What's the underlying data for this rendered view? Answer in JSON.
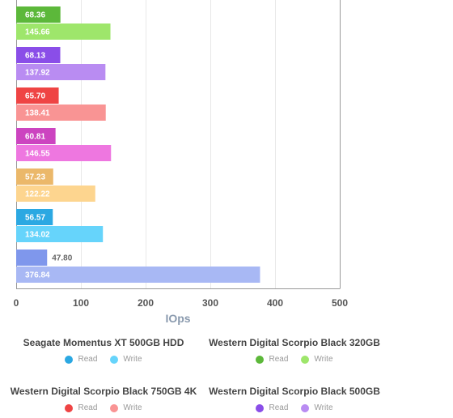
{
  "chart_data": {
    "type": "bar",
    "orientation": "horizontal",
    "xlabel": "IOps",
    "xlim": [
      0,
      500
    ],
    "xticks": [
      0,
      100,
      200,
      300,
      400,
      500
    ],
    "grid": true,
    "groups": [
      {
        "read": 68.36,
        "write": 145.66,
        "read_label": "68.36",
        "write_label": "145.66",
        "read_color": "#5cb83a",
        "write_color": "#9ee66b"
      },
      {
        "read": 68.13,
        "write": 137.92,
        "read_label": "68.13",
        "write_label": "137.92",
        "read_color": "#8a4ee8",
        "write_color": "#b98cf2"
      },
      {
        "read": 65.7,
        "write": 138.41,
        "read_label": "65.70",
        "write_label": "138.41",
        "read_color": "#ef4444",
        "write_color": "#f99494"
      },
      {
        "read": 60.81,
        "write": 146.55,
        "read_label": "60.81",
        "write_label": "146.55",
        "read_color": "#cc44c0",
        "write_color": "#ee77e0"
      },
      {
        "read": 57.23,
        "write": 122.22,
        "read_label": "57.23",
        "write_label": "122.22",
        "read_color": "#ebb86a",
        "write_color": "#fdd58f"
      },
      {
        "read": 56.57,
        "write": 134.02,
        "read_label": "56.57",
        "write_label": "134.02",
        "read_color": "#2ba8e2",
        "write_color": "#66d4fb"
      },
      {
        "read": 47.8,
        "write": 376.84,
        "read_label": "47.80",
        "write_label": "376.84",
        "read_color": "#7f97ec",
        "write_color": "#a8b8f4"
      }
    ],
    "legend": [
      {
        "title": "Seagate Momentus XT 500GB HDD",
        "read_label": "Read",
        "write_label": "Write",
        "read_color": "#2ba8e2",
        "write_color": "#66d4fb"
      },
      {
        "title": "Western Digital Scorpio Black 320GB",
        "read_label": "Read",
        "write_label": "Write",
        "read_color": "#5cb83a",
        "write_color": "#9ee66b"
      },
      {
        "title": "Western Digital Scorpio Black 750GB 4K",
        "read_label": "Read",
        "write_label": "Write",
        "read_color": "#ef4444",
        "write_color": "#f99494"
      },
      {
        "title": "Western Digital Scorpio Black 500GB",
        "read_label": "Read",
        "write_label": "Write",
        "read_color": "#8a4ee8",
        "write_color": "#b98cf2"
      }
    ]
  }
}
